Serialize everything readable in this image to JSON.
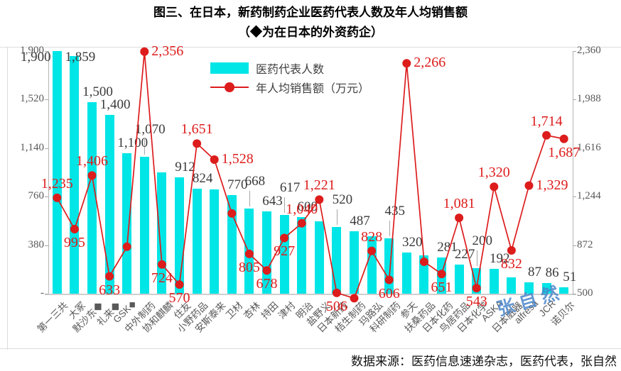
{
  "title": {
    "line1": "图三、在日本，新药制药企业医药代表人数及年人均销售额",
    "line2": "（◆为在日本的外资药企）"
  },
  "legend": {
    "bar_label": "医药代表人数",
    "line_label": "年人均销售额（万元）"
  },
  "source": "数据来源：医药信息速递杂志，医药代表，张自然",
  "watermark": "张自然",
  "colors": {
    "bar": "#00e5e6",
    "line": "#dd1c1c",
    "bar_label_text": "#3a3a3a",
    "line_label_text": "#dd1c1c",
    "axis_text": "#595959",
    "axis_line": "#b3b3b3"
  },
  "left_axis": {
    "min": 0,
    "max": 1900,
    "ticks": [
      "1,900",
      "1,520",
      "1,140",
      "760",
      "380",
      "-"
    ]
  },
  "right_axis": {
    "min": 500,
    "max": 2360,
    "ticks": [
      "2,360",
      "1,988",
      "1,616",
      "1,244",
      "872",
      "500"
    ]
  },
  "chart_data": {
    "type": "bar+line combo",
    "title": "图三、在日本，新药制药企业医药代表人数及年人均销售额（◆为在日本的外资药企）",
    "legend_position": "top-center inside plot",
    "grid": "off",
    "categories": [
      "第一三共",
      "大冢",
      "默沙东◆",
      "礼来◆",
      "GSK◆",
      "中外制药",
      "协和麒麟",
      "住友",
      "小野药品",
      "安斯泰来",
      "卫材",
      "杏林",
      "持田",
      "津村",
      "明治",
      "盐野义",
      "日本新药",
      "桔生制药",
      "玛路弘",
      "科研制药",
      "参天",
      "扶桑药品",
      "日本化药",
      "鸟居药品",
      "日本化学",
      "ASKA",
      "日本脏器",
      "alfresa",
      "JCR",
      "诺贝尔"
    ],
    "series": [
      {
        "name": "医药代表人数",
        "type": "bar",
        "axis": "left",
        "ylim": [
          0,
          1900
        ],
        "values": [
          1900,
          1859,
          1500,
          1400,
          1100,
          1070,
          950,
          912,
          824,
          815,
          770,
          668,
          643,
          617,
          600,
          565,
          520,
          487,
          450,
          435,
          320,
          300,
          281,
          227,
          200,
          192,
          130,
          87,
          86,
          51
        ],
        "labels": [
          "1,900",
          "1,859",
          "1,500",
          "1,400",
          "1,100",
          "1,070",
          "",
          "912",
          "824",
          "",
          "770",
          "668",
          "643",
          "617",
          "600",
          "",
          "520",
          "487",
          "",
          "435",
          "320",
          "",
          "281",
          "227",
          "200",
          "192",
          "",
          "87",
          "86",
          "51"
        ]
      },
      {
        "name": "年人均销售额（万元）",
        "type": "line",
        "axis": "right",
        "ylim": [
          500,
          2360
        ],
        "values": [
          1235,
          995,
          1406,
          633,
          860,
          2356,
          724,
          570,
          1651,
          1528,
          1115,
          805,
          678,
          927,
          1040,
          1221,
          506,
          465,
          828,
          606,
          2266,
          745,
          651,
          1081,
          543,
          1320,
          832,
          1329,
          1714,
          1687
        ],
        "labels": [
          "1,235",
          "995",
          "1,406",
          "633",
          "",
          "2,356",
          "724",
          "570",
          "1,651",
          "1,528",
          "",
          "805",
          "678",
          "927",
          "1,040",
          "1,221",
          "506",
          "",
          "828",
          "606",
          "2,266",
          "",
          "651",
          "1,081",
          "543",
          "1,320",
          "832",
          "1,329",
          "1,714",
          "1,687"
        ]
      }
    ]
  }
}
